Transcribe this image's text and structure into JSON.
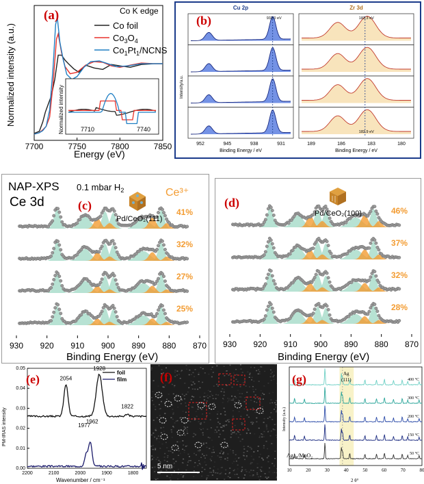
{
  "chart_data": [
    {
      "panel": "(a)",
      "type": "line",
      "title": "Co K edge",
      "xlabel": "Energy (eV)",
      "ylabel": "Normalized intensity (a.u.)",
      "xlim": [
        7700,
        7850
      ],
      "xticks": [
        "7700",
        "7750",
        "7800",
        "7850"
      ],
      "legend_position": "top-right",
      "series": [
        {
          "name": "Co foil",
          "color": "#222222",
          "x": [
            7700,
            7706,
            7710,
            7713,
            7716,
            7720,
            7724,
            7728,
            7732,
            7736,
            7740,
            7746,
            7752,
            7760,
            7770,
            7780,
            7790,
            7800,
            7812,
            7825,
            7840,
            7850
          ],
          "y": [
            0.02,
            0.05,
            0.18,
            0.32,
            0.42,
            0.55,
            0.78,
            1.12,
            1.12,
            1.05,
            1.0,
            0.93,
            0.88,
            0.98,
            0.94,
            0.92,
            0.99,
            0.97,
            0.95,
            0.99,
            1.0,
            1.0
          ]
        },
        {
          "name": "Co3O4",
          "color": "#e8312a",
          "x": [
            7700,
            7706,
            7710,
            7714,
            7718,
            7722,
            7726,
            7728,
            7732,
            7736,
            7742,
            7750,
            7760,
            7770,
            7780,
            7790,
            7800,
            7812,
            7825,
            7840,
            7850
          ],
          "y": [
            0.01,
            0.03,
            0.07,
            0.12,
            0.25,
            0.72,
            1.35,
            1.42,
            1.15,
            0.96,
            0.86,
            0.88,
            0.98,
            1.03,
            1.02,
            0.97,
            0.95,
            0.98,
            1.01,
            1.0,
            1.0
          ]
        },
        {
          "name": "Co1Pt1/NCNS",
          "color": "#1f7fc4",
          "x": [
            7700,
            7706,
            7710,
            7714,
            7718,
            7722,
            7725,
            7727,
            7730,
            7734,
            7738,
            7744,
            7750,
            7758,
            7766,
            7776,
            7786,
            7796,
            7810,
            7825,
            7840,
            7850
          ],
          "y": [
            0.01,
            0.03,
            0.06,
            0.12,
            0.35,
            0.95,
            1.55,
            1.65,
            1.3,
            1.05,
            0.85,
            0.78,
            0.82,
            0.95,
            1.03,
            1.04,
            1.0,
            0.96,
            0.97,
            1.0,
            1.0,
            1.0
          ]
        }
      ],
      "inset": {
        "ylabel": "Normalized intensity",
        "xticks": [
          "7710",
          "7740"
        ]
      }
    },
    {
      "panel": "(b)",
      "type": "line",
      "subplots": [
        {
          "title": "Cu 2p",
          "xlabel": "Binding Energy / eV",
          "ylabel": "Intensity/a.u.",
          "xticks": [
            "952",
            "945",
            "938",
            "931"
          ],
          "annotations": [
            "933.0 eV"
          ],
          "peaks": [
            {
              "center": 952.5,
              "height": 0.35
            },
            {
              "center": 933.0,
              "height": 1.0
            }
          ]
        },
        {
          "title": "Zr 3d",
          "xlabel": "Binding Energy / eV",
          "xticks": [
            "189",
            "186",
            "183",
            "180"
          ],
          "annotations": [
            "183.3 eV",
            "182.9 eV"
          ],
          "peaks": [
            {
              "center": 185.6,
              "height": 0.7
            },
            {
              "center": 183.1,
              "height": 1.0
            }
          ]
        }
      ]
    },
    {
      "panel": "(c)",
      "type": "line",
      "title": "NAP-XPS",
      "condition": "0.1 mbar H",
      "condition_sub": "2",
      "subtitle": "Ce 3d",
      "sample": "Pd/CeO₂(111)",
      "species": "Ce³⁺",
      "xlabel": "Binding Energy (eV)",
      "xlim": [
        930,
        870
      ],
      "xticks": [
        "930",
        "920",
        "910",
        "900",
        "890",
        "880",
        "870"
      ],
      "ce3_percent": [
        "41%",
        "32%",
        "27%",
        "25%"
      ]
    },
    {
      "panel": "(d)",
      "type": "line",
      "sample": "Pd/CeO₂(100)",
      "xlabel": "Binding Energy (eV)",
      "xlim": [
        930,
        870
      ],
      "xticks": [
        "930",
        "920",
        "910",
        "900",
        "890",
        "880",
        "870"
      ],
      "ce3_percent": [
        "46%",
        "37%",
        "32%",
        "28%"
      ]
    },
    {
      "panel": "(e)",
      "type": "line",
      "xlabel": "Wavenumber / cm⁻¹",
      "ylabel": "PM-IRAS intensity",
      "xlim": [
        2200,
        1750
      ],
      "ylim": [
        0,
        0.05
      ],
      "xticks": [
        "2200",
        "2100",
        "2000",
        "1900",
        "1800"
      ],
      "yticks": [
        "0.00",
        "0.01",
        "0.02",
        "0.03",
        "0.04",
        "0.05"
      ],
      "legend": [
        "foil",
        "film"
      ],
      "peak_labels": {
        "foil": [
          "2054",
          "1928",
          "1822"
        ],
        "film": [
          "1977",
          "1962"
        ]
      }
    },
    {
      "panel": "(f)",
      "type": "image",
      "scale_bar": "5 nm"
    },
    {
      "panel": "(g)",
      "type": "line",
      "xlabel": "2 θ°",
      "ylabel": "Intensity (a.u.)",
      "xlim": [
        10,
        80
      ],
      "xticks": [
        "10",
        "20",
        "30",
        "40",
        "50",
        "60",
        "70",
        "80"
      ],
      "highlight_label": "Ag",
      "highlight_label_2": "(111)",
      "sample_base": "Ag",
      "sample_sub": "NP",
      "sample_rest": "/MnO₂",
      "series": [
        {
          "name": "50 °C",
          "color": "#333333"
        },
        {
          "name": "150 °C",
          "color": "#1a2a80"
        },
        {
          "name": "200 °C",
          "color": "#2a4aa8"
        },
        {
          "name": "300 °C",
          "color": "#2aa59a"
        },
        {
          "name": "400 °C",
          "color": "#6ccfc4"
        }
      ]
    }
  ],
  "colors": {
    "label_red": "#cc0000",
    "frame_blue": "#1a3a8a",
    "ce3_orange": "#f39c32",
    "ce4_green": "#9fd8c4",
    "cu_blue": "#4a6fd4",
    "zr_yellow": "#f7dfb0"
  }
}
